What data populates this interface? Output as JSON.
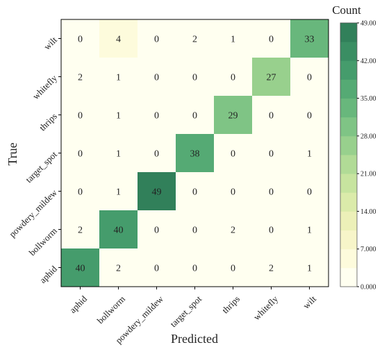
{
  "chart_data": {
    "type": "heatmap",
    "title": "",
    "xlabel": "Predicted",
    "ylabel": "True",
    "x_categories": [
      "aphid",
      "bollworm",
      "powdery_mildew",
      "target_spot",
      "thrips",
      "whitefly",
      "wilt"
    ],
    "y_categories_top_to_bottom": [
      "wilt",
      "whitefly",
      "thrips",
      "target_spot",
      "powdery_mildew",
      "bollworm",
      "aphid"
    ],
    "matrix_top_to_bottom": [
      [
        0,
        4,
        0,
        2,
        1,
        0,
        33
      ],
      [
        2,
        1,
        0,
        0,
        0,
        27,
        0
      ],
      [
        0,
        1,
        0,
        0,
        29,
        0,
        0
      ],
      [
        0,
        1,
        0,
        38,
        0,
        0,
        1
      ],
      [
        0,
        1,
        49,
        0,
        0,
        0,
        0
      ],
      [
        2,
        40,
        0,
        0,
        2,
        0,
        1
      ],
      [
        40,
        2,
        0,
        0,
        0,
        2,
        1
      ]
    ],
    "colorbar": {
      "title": "Count",
      "range": [
        0,
        49
      ],
      "ticks": [
        0,
        7,
        14,
        21,
        28,
        35,
        42,
        49
      ],
      "tick_labels": [
        "0.000",
        "7.000",
        "14.00",
        "21.00",
        "28.00",
        "35.00",
        "42.00",
        "49.00"
      ],
      "levels": 14,
      "colors": [
        "#fffff0",
        "#fdfbdc",
        "#f7f5c9",
        "#ecf0b8",
        "#dbebaa",
        "#c7e49f",
        "#b1db96",
        "#98d08d",
        "#7fc485",
        "#68b77c",
        "#55aa74",
        "#459c6c",
        "#3a8e63",
        "#31805a"
      ]
    }
  }
}
